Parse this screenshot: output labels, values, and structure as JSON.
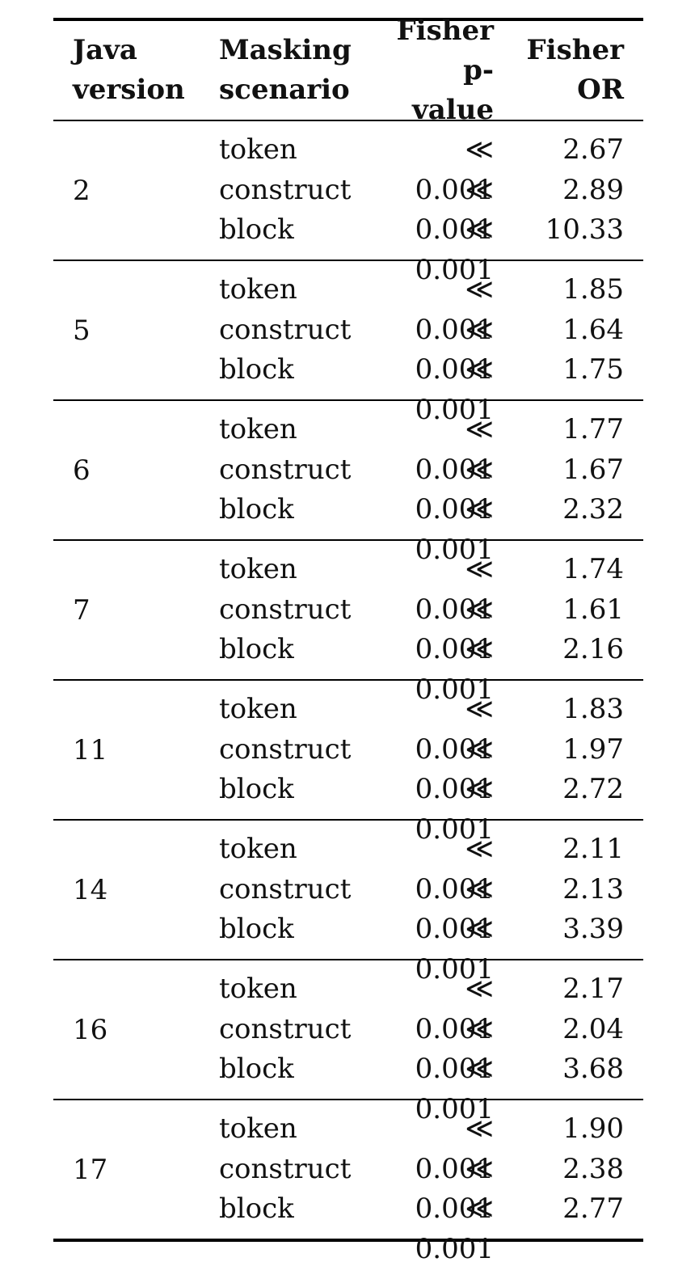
{
  "headers": {
    "version": [
      "Java",
      "version"
    ],
    "scenario": [
      "Masking",
      "scenario"
    ],
    "pvalue": [
      "Fisher",
      "p-value"
    ],
    "or": [
      "Fisher",
      "OR"
    ]
  },
  "groups": [
    {
      "version": "2",
      "rows": [
        {
          "scenario": "token",
          "pvalue": "≪ 0.001",
          "or": "2.67"
        },
        {
          "scenario": "construct",
          "pvalue": "≪ 0.001",
          "or": "2.89"
        },
        {
          "scenario": "block",
          "pvalue": "≪ 0.001",
          "or": "10.33"
        }
      ]
    },
    {
      "version": "5",
      "rows": [
        {
          "scenario": "token",
          "pvalue": "≪ 0.001",
          "or": "1.85"
        },
        {
          "scenario": "construct",
          "pvalue": "≪ 0.001",
          "or": "1.64"
        },
        {
          "scenario": "block",
          "pvalue": "≪ 0.001",
          "or": "1.75"
        }
      ]
    },
    {
      "version": "6",
      "rows": [
        {
          "scenario": "token",
          "pvalue": "≪ 0.001",
          "or": "1.77"
        },
        {
          "scenario": "construct",
          "pvalue": "≪ 0.001",
          "or": "1.67"
        },
        {
          "scenario": "block",
          "pvalue": "≪ 0.001",
          "or": "2.32"
        }
      ]
    },
    {
      "version": "7",
      "rows": [
        {
          "scenario": "token",
          "pvalue": "≪ 0.001",
          "or": "1.74"
        },
        {
          "scenario": "construct",
          "pvalue": "≪ 0.001",
          "or": "1.61"
        },
        {
          "scenario": "block",
          "pvalue": "≪ 0.001",
          "or": "2.16"
        }
      ]
    },
    {
      "version": "11",
      "rows": [
        {
          "scenario": "token",
          "pvalue": "≪ 0.001",
          "or": "1.83"
        },
        {
          "scenario": "construct",
          "pvalue": "≪ 0.001",
          "or": "1.97"
        },
        {
          "scenario": "block",
          "pvalue": "≪ 0.001",
          "or": "2.72"
        }
      ]
    },
    {
      "version": "14",
      "rows": [
        {
          "scenario": "token",
          "pvalue": "≪ 0.001",
          "or": "2.11"
        },
        {
          "scenario": "construct",
          "pvalue": "≪ 0.001",
          "or": "2.13"
        },
        {
          "scenario": "block",
          "pvalue": "≪ 0.001",
          "or": "3.39"
        }
      ]
    },
    {
      "version": "16",
      "rows": [
        {
          "scenario": "token",
          "pvalue": "≪ 0.001",
          "or": "2.17"
        },
        {
          "scenario": "construct",
          "pvalue": "≪ 0.001",
          "or": "2.04"
        },
        {
          "scenario": "block",
          "pvalue": "≪ 0.001",
          "or": "3.68"
        }
      ]
    },
    {
      "version": "17",
      "rows": [
        {
          "scenario": "token",
          "pvalue": "≪ 0.001",
          "or": "1.90"
        },
        {
          "scenario": "construct",
          "pvalue": "≪ 0.001",
          "or": "2.38"
        },
        {
          "scenario": "block",
          "pvalue": "≪ 0.001",
          "or": "2.77"
        }
      ]
    }
  ]
}
